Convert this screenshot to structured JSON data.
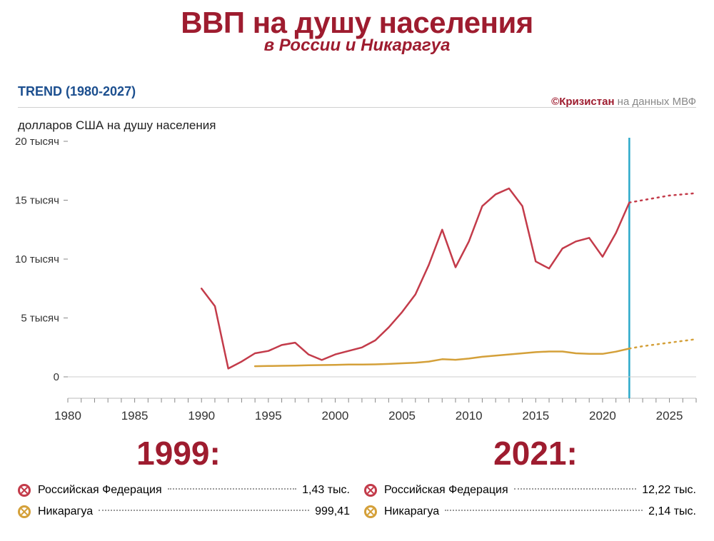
{
  "title": "ВВП на душу населения",
  "subtitle": "в России и Никарагуа",
  "trend_label": "TREND (1980-2027)",
  "attribution_brand": "©Кризистан",
  "attribution_rest": " на данных МВФ",
  "ylabel": "долларов США на душу населения",
  "chart": {
    "type": "line",
    "xlim": [
      1980,
      2027
    ],
    "ylim": [
      0,
      20000
    ],
    "xtick_step": 5,
    "xtick_labels": [
      "1980",
      "1985",
      "1990",
      "1995",
      "2000",
      "2005",
      "2010",
      "2015",
      "2020",
      "2025"
    ],
    "ytick_step": 5000,
    "ytick_labels": [
      "0",
      "5 тысяч",
      "10 тысяч",
      "15 тысяч",
      "20 тысяч"
    ],
    "background_color": "#ffffff",
    "grid_color": "#e6e6e6",
    "tick_font_size": 15,
    "tick_color": "#333333",
    "line_width": 2.5,
    "forecast_marker_year": 2022,
    "marker_line_color": "#2aa9c9",
    "series": [
      {
        "name": "Российская Федерация",
        "color": "#c33b4a",
        "points_solid": [
          [
            1990,
            7500
          ],
          [
            1991,
            6000
          ],
          [
            1992,
            700
          ],
          [
            1993,
            1300
          ],
          [
            1994,
            2000
          ],
          [
            1995,
            2200
          ],
          [
            1996,
            2700
          ],
          [
            1997,
            2900
          ],
          [
            1998,
            1900
          ],
          [
            1999,
            1430
          ],
          [
            2000,
            1900
          ],
          [
            2001,
            2200
          ],
          [
            2002,
            2500
          ],
          [
            2003,
            3100
          ],
          [
            2004,
            4200
          ],
          [
            2005,
            5500
          ],
          [
            2006,
            7000
          ],
          [
            2007,
            9500
          ],
          [
            2008,
            12500
          ],
          [
            2009,
            9300
          ],
          [
            2010,
            11500
          ],
          [
            2011,
            14500
          ],
          [
            2012,
            15500
          ],
          [
            2013,
            16000
          ],
          [
            2014,
            14500
          ],
          [
            2015,
            9800
          ],
          [
            2016,
            9200
          ],
          [
            2017,
            10900
          ],
          [
            2018,
            11500
          ],
          [
            2019,
            11800
          ],
          [
            2020,
            10200
          ],
          [
            2021,
            12220
          ],
          [
            2022,
            14800
          ]
        ],
        "points_dotted": [
          [
            2022,
            14800
          ],
          [
            2023,
            15000
          ],
          [
            2024,
            15200
          ],
          [
            2025,
            15400
          ],
          [
            2026,
            15500
          ],
          [
            2027,
            15600
          ]
        ]
      },
      {
        "name": "Никарагуа",
        "color": "#d4a039",
        "points_solid": [
          [
            1994,
            900
          ],
          [
            1995,
            920
          ],
          [
            1996,
            940
          ],
          [
            1997,
            960
          ],
          [
            1998,
            980
          ],
          [
            1999,
            999
          ],
          [
            2000,
            1020
          ],
          [
            2001,
            1040
          ],
          [
            2002,
            1040
          ],
          [
            2003,
            1060
          ],
          [
            2004,
            1100
          ],
          [
            2005,
            1150
          ],
          [
            2006,
            1200
          ],
          [
            2007,
            1300
          ],
          [
            2008,
            1500
          ],
          [
            2009,
            1450
          ],
          [
            2010,
            1550
          ],
          [
            2011,
            1700
          ],
          [
            2012,
            1800
          ],
          [
            2013,
            1900
          ],
          [
            2014,
            2000
          ],
          [
            2015,
            2100
          ],
          [
            2016,
            2150
          ],
          [
            2017,
            2150
          ],
          [
            2018,
            2000
          ],
          [
            2019,
            1950
          ],
          [
            2020,
            1950
          ],
          [
            2021,
            2140
          ],
          [
            2022,
            2400
          ]
        ],
        "points_dotted": [
          [
            2022,
            2400
          ],
          [
            2023,
            2600
          ],
          [
            2024,
            2750
          ],
          [
            2025,
            2900
          ],
          [
            2026,
            3050
          ],
          [
            2027,
            3200
          ]
        ]
      }
    ]
  },
  "callouts": {
    "year1": "1999:",
    "year2": "2021:"
  },
  "legend": {
    "columns": [
      {
        "rows": [
          {
            "color": "#c33b4a",
            "label": "Российская Федерация",
            "value": "1,43 тыс."
          },
          {
            "color": "#d4a039",
            "label": "Никарагуа",
            "value": "999,41"
          }
        ]
      },
      {
        "rows": [
          {
            "color": "#c33b4a",
            "label": "Российская Федерация",
            "value": "12,22 тыс."
          },
          {
            "color": "#d4a039",
            "label": "Никарагуа",
            "value": "2,14 тыс."
          }
        ]
      }
    ]
  }
}
